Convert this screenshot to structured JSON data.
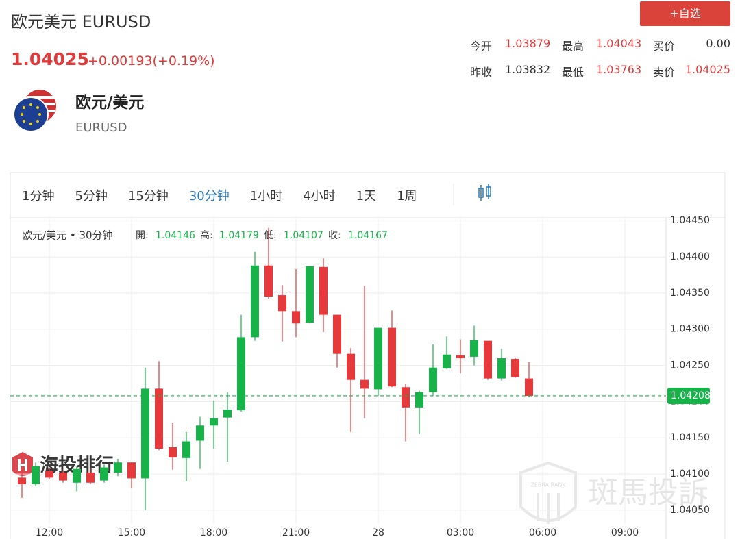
{
  "header": {
    "title": "欧元美元 EURUSD",
    "button": "+自选",
    "price": "1.04025",
    "change": "+0.00193(+0.19%)"
  },
  "quote": [
    [
      {
        "label": "今开",
        "value": "1.03879",
        "color": "#e03a3a"
      },
      {
        "label": "最高",
        "value": "1.04043",
        "color": "#e03a3a"
      },
      {
        "label": "买价",
        "value": "0.00",
        "color": "#333333"
      }
    ],
    [
      {
        "label": "昨收",
        "value": "1.03832",
        "color": "#333333"
      },
      {
        "label": "最低",
        "value": "1.03763",
        "color": "#e03a3a"
      },
      {
        "label": "卖价",
        "value": "1.04025",
        "color": "#e03a3a"
      }
    ]
  ],
  "instrument": {
    "name": "欧元/美元",
    "code": "EURUSD"
  },
  "intervals": [
    "1分钟",
    "5分钟",
    "15分钟",
    "30分钟",
    "1小时",
    "4小时",
    "1天",
    "1周"
  ],
  "active_interval": 3,
  "watermarks": {
    "left": "海投排行",
    "right": "斑馬投訴",
    "badge": "ZEBRA RANK"
  },
  "chart_data": {
    "type": "candlestick",
    "legend": {
      "symbol": "欧元/美元 • 30分钟",
      "items": [
        {
          "label": "開:",
          "value": "1.04146"
        },
        {
          "label": "高:",
          "value": "1.04179"
        },
        {
          "label": "低:",
          "value": "1.04107"
        },
        {
          "label": "收:",
          "value": "1.04167"
        }
      ]
    },
    "categories": [
      null,
      null,
      "12:00",
      null,
      null,
      null,
      null,
      null,
      "15:00",
      null,
      null,
      null,
      null,
      null,
      "18:00",
      null,
      null,
      null,
      null,
      null,
      "21:00",
      null,
      null,
      null,
      null,
      null,
      "28",
      null,
      null,
      null,
      null,
      null,
      "03:00",
      null,
      null,
      null,
      null,
      null,
      "06:00",
      null,
      null,
      null,
      null,
      null,
      "09:00",
      null,
      null
    ],
    "open": [
      1.04095,
      1.04086,
      1.04104,
      1.04102,
      1.04088,
      1.04102,
      1.04091,
      1.04102,
      1.04116,
      1.04094,
      1.04218,
      1.04137,
      1.04122,
      1.04146,
      1.04167,
      1.04178,
      1.04188,
      1.04289,
      1.04388,
      1.04347,
      1.04325,
      1.04309,
      1.04386,
      1.0432,
      1.04266,
      1.0423,
      1.04217,
      1.04302,
      1.0422,
      1.04192,
      1.04213,
      1.04246,
      1.04264,
      1.04262,
      1.04284,
      1.04232,
      1.04259,
      1.04232,
      null,
      null,
      null,
      null,
      null,
      null,
      null,
      null,
      null
    ],
    "high": [
      1.04102,
      1.04116,
      1.04109,
      1.04105,
      1.04111,
      1.04107,
      1.04113,
      1.04121,
      1.04116,
      1.04247,
      1.04256,
      1.04171,
      1.04158,
      1.04179,
      1.04201,
      1.04213,
      1.0432,
      1.04407,
      1.0444,
      1.04361,
      1.04383,
      1.04387,
      1.04398,
      1.0432,
      1.04274,
      1.0436,
      1.04302,
      1.04326,
      1.04225,
      1.04215,
      1.04279,
      1.0429,
      1.04286,
      1.04305,
      1.04284,
      1.04273,
      1.04261,
      1.04255,
      null,
      null,
      null,
      null,
      null,
      null,
      null,
      null,
      null
    ],
    "low": [
      1.04067,
      1.04083,
      1.04093,
      1.04088,
      1.04076,
      1.04086,
      1.04088,
      1.04097,
      1.04081,
      1.0405,
      1.04133,
      1.04106,
      1.0409,
      1.04107,
      1.04135,
      1.04117,
      1.04186,
      1.04284,
      1.04342,
      1.04283,
      1.04289,
      1.04308,
      1.04296,
      1.04247,
      1.04158,
      1.04177,
      1.04208,
      1.0422,
      1.04145,
      1.04155,
      1.04208,
      1.04245,
      1.04239,
      1.0425,
      1.0423,
      1.04229,
      1.04233,
      1.04207,
      null,
      null,
      null,
      null,
      null,
      null,
      null,
      null,
      null
    ],
    "close": [
      1.04086,
      1.04111,
      1.04095,
      1.04091,
      1.04107,
      1.04088,
      1.04109,
      1.04116,
      1.04094,
      1.04218,
      1.04135,
      1.04123,
      1.04145,
      1.04167,
      1.04177,
      1.04189,
      1.04289,
      1.04388,
      1.04345,
      1.04325,
      1.04308,
      1.04387,
      1.0432,
      1.04266,
      1.0423,
      1.04218,
      1.04302,
      1.04221,
      1.04192,
      1.04213,
      1.04247,
      1.04265,
      1.0426,
      1.04285,
      1.04232,
      1.0426,
      1.04234,
      1.04208,
      null,
      null,
      null,
      null,
      null,
      null,
      null,
      null,
      null
    ],
    "up_color": "#19b24a",
    "down_color": "#e5393b",
    "last_price": 1.04208,
    "last_price_color": "#19b24a",
    "ylim": [
      1.04031,
      1.04454
    ],
    "yticks": [
      {
        "value": 1.0445,
        "label": "1.04450"
      },
      {
        "value": 1.044,
        "label": "1.04400"
      },
      {
        "value": 1.0435,
        "label": "1.04350"
      },
      {
        "value": 1.043,
        "label": "1.04300"
      },
      {
        "value": 1.0425,
        "label": "1.04250"
      },
      {
        "value": 1.042,
        "label": "1.04200"
      },
      {
        "value": 1.0415,
        "label": "1.04150"
      },
      {
        "value": 1.041,
        "label": "1.04100"
      },
      {
        "value": 1.0405,
        "label": "1.04050"
      }
    ],
    "grid": true
  }
}
